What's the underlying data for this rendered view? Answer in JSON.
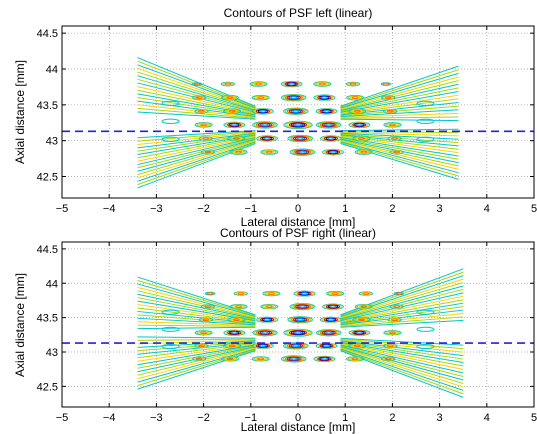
{
  "chart_data": [
    {
      "type": "contour",
      "title": "Contours of PSF left (linear)",
      "xlabel": "Lateral distance [mm]",
      "ylabel": "Axial distance [mm]",
      "xlim": [
        -5,
        5
      ],
      "ylim": [
        42.2,
        44.6
      ],
      "xticks": [
        -5,
        -4,
        -3,
        -2,
        -1,
        0,
        1,
        2,
        3,
        4,
        5
      ],
      "yticks": [
        42.5,
        43,
        43.5,
        44,
        44.5
      ],
      "grid": true,
      "reference_line": {
        "y": 43.13,
        "style": "dashed",
        "color": "#2222dd"
      },
      "field": {
        "x_center": 0.0,
        "y_center": 43.22,
        "x_extent": [
          -3.4,
          3.4
        ],
        "y_extent": [
          42.4,
          44.1
        ],
        "tilt": -0.12
      }
    },
    {
      "type": "contour",
      "title": "Contours of PSF right (linear)",
      "xlabel": "Lateral distance [mm]",
      "ylabel": "Axial distance [mm]",
      "xlim": [
        -5,
        5
      ],
      "ylim": [
        42.2,
        44.6
      ],
      "xticks": [
        -5,
        -4,
        -3,
        -2,
        -1,
        0,
        1,
        2,
        3,
        4,
        5
      ],
      "yticks": [
        42.5,
        43,
        43.5,
        44,
        44.5
      ],
      "grid": true,
      "reference_line": {
        "y": 43.13,
        "style": "dashed",
        "color": "#2222dd"
      },
      "field": {
        "x_center": 0.0,
        "y_center": 43.28,
        "x_extent": [
          -3.4,
          3.5
        ],
        "y_extent": [
          42.4,
          44.15
        ],
        "tilt": 0.12
      }
    }
  ],
  "colors": {
    "levels": [
      "#00c8c8",
      "#a8d800",
      "#ffd200",
      "#ff6a00",
      "#d40000",
      "#0000c8",
      "#0050ff",
      "#00b0ff"
    ],
    "reference": "#2222dd",
    "grid": "#9a9a9a",
    "axis": "#000000"
  }
}
